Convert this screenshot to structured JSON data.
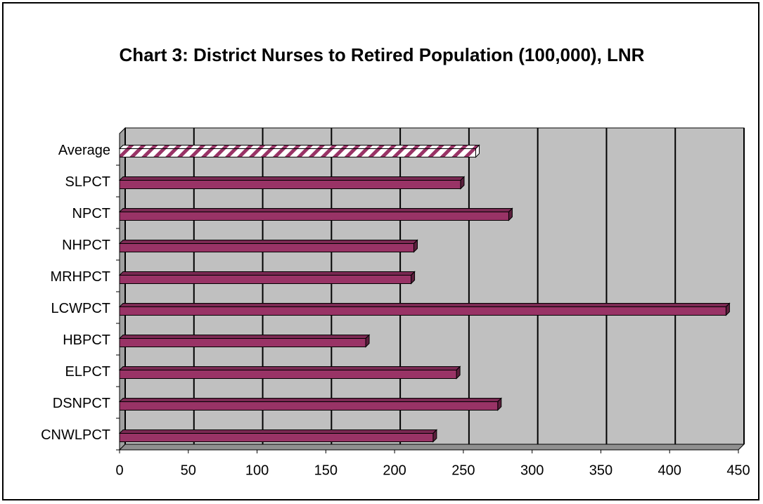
{
  "chart_data": {
    "type": "bar",
    "orientation": "horizontal",
    "title": "Chart 3: District Nurses to Retired Population (100,000), LNR",
    "categories": [
      "CNWLPCT",
      "DSNPCT",
      "ELPCT",
      "HBPCT",
      "LCWPCT",
      "MRHPCT",
      "NHPCT",
      "NPCT",
      "SLPCT",
      "Average"
    ],
    "values": [
      228,
      275,
      245,
      179,
      441,
      212,
      214,
      283,
      248,
      259
    ],
    "color": "#993366",
    "hatched_category": "Average",
    "xlim": [
      0,
      450
    ],
    "xticks": [
      0,
      50,
      100,
      150,
      200,
      250,
      300,
      350,
      400,
      450
    ],
    "grid": true,
    "wall_color": "#c0c0c0"
  }
}
